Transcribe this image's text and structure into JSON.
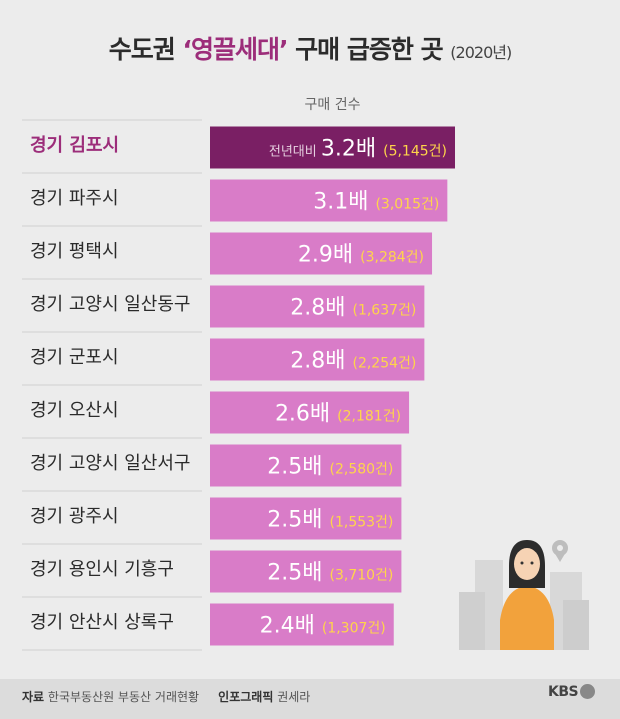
{
  "header": {
    "title_prefix": "수도권 ",
    "title_highlight": "‘영끌세대’",
    "title_suffix": " 구매 급증한 곳 ",
    "title_year": "(2020년)"
  },
  "chart_data": {
    "type": "bar",
    "orientation": "horizontal",
    "title": "수도권 ‘영끌세대’ 구매 급증한 곳 (2020년)",
    "column_label": "구매 건수",
    "first_row_prefix": "전년대비",
    "categories": [
      "경기 김포시",
      "경기 파주시",
      "경기 평택시",
      "경기 고양시 일산동구",
      "경기 군포시",
      "경기 오산시",
      "경기 고양시 일산서구",
      "경기 광주시",
      "경기 용인시 기흥구",
      "경기 안산시 상록구"
    ],
    "ratio_labels": [
      "3.2배",
      "3.1배",
      "2.9배",
      "2.8배",
      "2.8배",
      "2.6배",
      "2.5배",
      "2.5배",
      "2.5배",
      "2.4배"
    ],
    "count_labels": [
      "(5,145건)",
      "(3,015건)",
      "(3,284건)",
      "(1,637건)",
      "(2,254건)",
      "(2,181건)",
      "(2,580건)",
      "(1,553건)",
      "(3,710건)",
      "(1,307건)"
    ],
    "values": [
      3.2,
      3.1,
      2.9,
      2.8,
      2.8,
      2.6,
      2.5,
      2.5,
      2.5,
      2.4
    ],
    "counts": [
      5145,
      3015,
      3284,
      1637,
      2254,
      2181,
      2580,
      1553,
      3710,
      1307
    ],
    "colors": {
      "highlight_bar": "#7a1f64",
      "bar": "#d97cc8",
      "highlight_label": "#9c2d7a",
      "label": "#2b2b2b",
      "count_text": "#ffd54a",
      "ratio_text": "#ffffff"
    }
  },
  "footer": {
    "source_label": "자료",
    "source_text": "한국부동산원 부동산 거래현황",
    "infographic_label": "인포그래픽",
    "infographic_author": "권세라",
    "logo_text": "KBS"
  }
}
